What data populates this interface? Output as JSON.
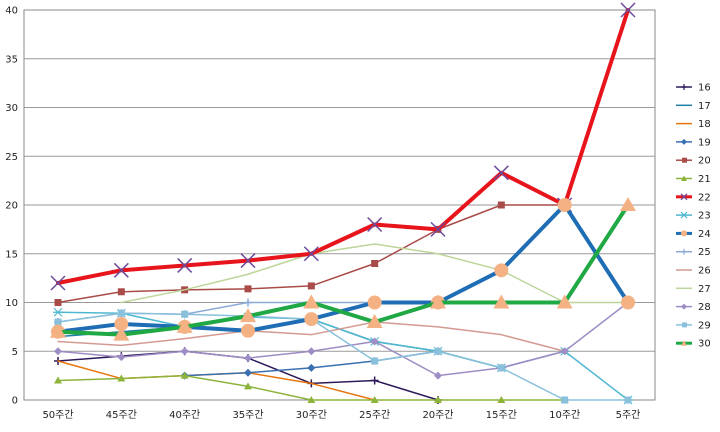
{
  "chart_data": {
    "type": "line",
    "categories": [
      "50주간",
      "45주간",
      "40주간",
      "35주간",
      "30주간",
      "25주간",
      "20주간",
      "15주간",
      "10주간",
      "5주간"
    ],
    "ylim": [
      0,
      40
    ],
    "y_ticks": [
      "0",
      "5",
      "10",
      "15",
      "20",
      "25",
      "30",
      "35",
      "40"
    ],
    "grid": true,
    "legend_position": "right",
    "series": [
      {
        "name": "16",
        "color": "#2e1a5a",
        "marker": "plus",
        "width": 1.5,
        "values": [
          4,
          4.5,
          5,
          4.3,
          1.7,
          2,
          0,
          null,
          null,
          null
        ]
      },
      {
        "name": "17",
        "color": "#1f7fa8",
        "marker": "none",
        "width": 1.5,
        "values": [
          6.5,
          7,
          7.5,
          7,
          8.3,
          6,
          5,
          3.3,
          null,
          null
        ]
      },
      {
        "name": "18",
        "color": "#e8750c",
        "marker": "none",
        "width": 1.5,
        "values": [
          4,
          2.2,
          2.5,
          2.8,
          1.7,
          0,
          null,
          null,
          null,
          null
        ]
      },
      {
        "name": "19",
        "color": "#3a6fb0",
        "marker": "diamond",
        "width": 1.5,
        "values": [
          null,
          null,
          2.5,
          2.8,
          3.3,
          4,
          5,
          null,
          null,
          null
        ]
      },
      {
        "name": "20",
        "color": "#a94b48",
        "marker": "square",
        "width": 1.5,
        "values": [
          10,
          11.1,
          11.3,
          11.4,
          11.7,
          14,
          17.5,
          20,
          20,
          null
        ]
      },
      {
        "name": "21",
        "color": "#8db43a",
        "marker": "triangle",
        "width": 1.5,
        "values": [
          2,
          2.2,
          2.5,
          1.4,
          0,
          0,
          0,
          0,
          0,
          null
        ]
      },
      {
        "name": "22",
        "color": "#e8141c",
        "marker": "x",
        "width": 4,
        "values": [
          12,
          13.3,
          13.8,
          14.3,
          15,
          18,
          17.5,
          23.3,
          20,
          40
        ]
      },
      {
        "name": "23",
        "color": "#4fb8d0",
        "marker": "star",
        "width": 1.5,
        "values": [
          9,
          8.9,
          7.5,
          8.5,
          8.3,
          6,
          5,
          3.3,
          5,
          0
        ]
      },
      {
        "name": "24",
        "color": "#1f6db4",
        "marker": "circle",
        "width": 4,
        "values": [
          7,
          7.8,
          7.5,
          7.1,
          8.3,
          10,
          10,
          13.3,
          20,
          10
        ]
      },
      {
        "name": "25",
        "color": "#8caad6",
        "marker": "plus",
        "width": 1.5,
        "values": [
          8,
          8.9,
          8.8,
          10,
          10,
          10,
          null,
          null,
          null,
          null
        ]
      },
      {
        "name": "26",
        "color": "#d49a92",
        "marker": "none",
        "width": 1.5,
        "values": [
          6,
          5.6,
          6.3,
          7.1,
          6.7,
          8,
          7.5,
          6.7,
          5,
          null
        ]
      },
      {
        "name": "27",
        "color": "#bcd699",
        "marker": "none",
        "width": 1.5,
        "values": [
          null,
          10,
          11.3,
          12.9,
          15,
          16,
          15,
          13.3,
          10,
          10
        ]
      },
      {
        "name": "28",
        "color": "#9d8dc4",
        "marker": "diamond",
        "width": 1.5,
        "values": [
          5,
          4.4,
          5,
          4.3,
          5,
          6,
          2.5,
          3.3,
          5,
          10
        ]
      },
      {
        "name": "29",
        "color": "#89c0dc",
        "marker": "square",
        "width": 1.5,
        "values": [
          8,
          8.9,
          8.8,
          8.6,
          8.3,
          4,
          5,
          3.3,
          0,
          0
        ]
      },
      {
        "name": "30",
        "color": "#1fa843",
        "marker": "triangle",
        "width": 4,
        "values": [
          7,
          6.7,
          7.5,
          8.6,
          10,
          8,
          10,
          10,
          10,
          20
        ]
      }
    ]
  },
  "style": {
    "marker_fill_circle": "#f4b183",
    "marker_fill_triangle": "#f4b183"
  }
}
